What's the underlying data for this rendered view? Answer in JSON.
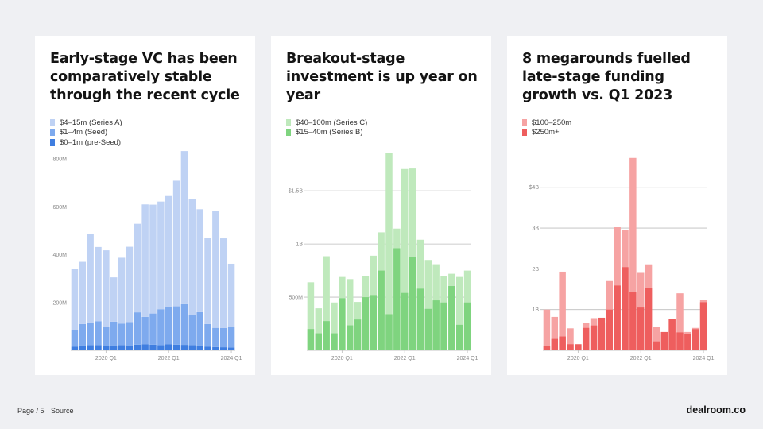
{
  "footer": {
    "page_label": "Page / 5",
    "source_label": "Source"
  },
  "brand": "dealroom.co",
  "colors": {
    "blue_a": "#bfd2f4",
    "blue_seed": "#7eaaee",
    "blue_pre": "#3f7ee0",
    "blue_grid": "#dde3ec",
    "green_c": "#bfe9bc",
    "green_b": "#7fd47f",
    "red_small": "#f6a3a3",
    "red_mega": "#ee5e5e",
    "grid": "#bdbdbd"
  },
  "chart_data": [
    {
      "type": "bar",
      "stacked": true,
      "title": "Early-stage VC has been comparatively stable through the recent cycle",
      "ylim": [
        0,
        840
      ],
      "y_ticks": [
        {
          "value": 200,
          "label": "200M"
        },
        {
          "value": 400,
          "label": "400M"
        },
        {
          "value": 600,
          "label": "600M"
        },
        {
          "value": 800,
          "label": "800M"
        }
      ],
      "x_tick_labels": [
        {
          "index": 4,
          "label": "2020 Q1"
        },
        {
          "index": 12,
          "label": "2022 Q1"
        },
        {
          "index": 20,
          "label": "2024 Q1"
        }
      ],
      "gridlines": false,
      "categories": [
        "2019 Q1",
        "2019 Q2",
        "2019 Q3",
        "2019 Q4",
        "2020 Q1",
        "2020 Q2",
        "2020 Q3",
        "2020 Q4",
        "2021 Q1",
        "2021 Q2",
        "2021 Q3",
        "2021 Q4",
        "2022 Q1",
        "2022 Q2",
        "2022 Q3",
        "2022 Q4",
        "2023 Q1",
        "2023 Q2",
        "2023 Q3",
        "2023 Q4",
        "2024 Q1"
      ],
      "series": [
        {
          "name": "$0–1m (pre-Seed)",
          "color_key": "blue_pre",
          "values": [
            15,
            20,
            22,
            22,
            18,
            20,
            22,
            18,
            24,
            25,
            24,
            22,
            25,
            24,
            23,
            22,
            20,
            15,
            14,
            13,
            12
          ]
        },
        {
          "name": "$1–4m (Seed)",
          "color_key": "blue_seed",
          "values": [
            70,
            90,
            95,
            100,
            80,
            100,
            90,
            100,
            135,
            115,
            130,
            150,
            155,
            160,
            170,
            125,
            140,
            95,
            80,
            80,
            85
          ]
        },
        {
          "name": "$4–15m (Series A)",
          "color_key": "blue_a",
          "values": [
            255,
            260,
            370,
            310,
            320,
            185,
            275,
            315,
            370,
            470,
            455,
            450,
            465,
            525,
            640,
            485,
            430,
            360,
            490,
            375,
            265
          ]
        }
      ],
      "legend": [
        {
          "label": "$4–15m (Series A)",
          "color_key": "blue_a"
        },
        {
          "label": "$1–4m (Seed)",
          "color_key": "blue_seed"
        },
        {
          "label": "$0–1m (pre-Seed)",
          "color_key": "blue_pre"
        }
      ]
    },
    {
      "type": "bar",
      "overlap": true,
      "title": "Breakout-stage investment is up year on year",
      "ylim": [
        0,
        1890
      ],
      "y_ticks": [
        {
          "value": 500,
          "label": "500M"
        },
        {
          "value": 1000,
          "label": "1B"
        },
        {
          "value": 1500,
          "label": "$1.5B"
        }
      ],
      "x_tick_labels": [
        {
          "index": 4,
          "label": "2020 Q1"
        },
        {
          "index": 12,
          "label": "2022 Q1"
        },
        {
          "index": 20,
          "label": "2024 Q1"
        }
      ],
      "gridlines": true,
      "categories": [
        "2019 Q1",
        "2019 Q2",
        "2019 Q3",
        "2019 Q4",
        "2020 Q1",
        "2020 Q2",
        "2020 Q3",
        "2020 Q4",
        "2021 Q1",
        "2021 Q2",
        "2021 Q3",
        "2021 Q4",
        "2022 Q1",
        "2022 Q2",
        "2022 Q3",
        "2022 Q4",
        "2023 Q1",
        "2023 Q2",
        "2023 Q3",
        "2023 Q4",
        "2024 Q1"
      ],
      "series": [
        {
          "name": "$40–100m (Series C)",
          "color_key": "green_c",
          "values": [
            640,
            395,
            885,
            450,
            690,
            670,
            455,
            700,
            890,
            1110,
            1860,
            1145,
            1705,
            1710,
            1040,
            850,
            810,
            695,
            720,
            690,
            750
          ]
        },
        {
          "name": "$15–40m (Series B)",
          "color_key": "green_b",
          "values": [
            200,
            160,
            275,
            160,
            490,
            235,
            290,
            500,
            520,
            750,
            340,
            960,
            540,
            880,
            580,
            390,
            470,
            450,
            605,
            240,
            450
          ]
        }
      ],
      "legend": [
        {
          "label": "$40–100m (Series C)",
          "color_key": "green_c"
        },
        {
          "label": "$15–40m (Series B)",
          "color_key": "green_b"
        }
      ]
    },
    {
      "type": "bar",
      "overlap": true,
      "title": "8 megarounds fuelled late-stage funding growth vs. Q1 2023",
      "ylim": [
        0,
        4930
      ],
      "y_ticks": [
        {
          "value": 1000,
          "label": "1B"
        },
        {
          "value": 2000,
          "label": "2B"
        },
        {
          "value": 3000,
          "label": "3B"
        },
        {
          "value": 4000,
          "label": "$4B"
        }
      ],
      "x_tick_labels": [
        {
          "index": 4,
          "label": "2020 Q1"
        },
        {
          "index": 12,
          "label": "2022 Q1"
        },
        {
          "index": 20,
          "label": "2024 Q1"
        }
      ],
      "gridlines": true,
      "categories": [
        "2019 Q1",
        "2019 Q2",
        "2019 Q3",
        "2019 Q4",
        "2020 Q1",
        "2020 Q2",
        "2020 Q3",
        "2020 Q4",
        "2021 Q1",
        "2021 Q2",
        "2021 Q3",
        "2021 Q4",
        "2022 Q1",
        "2022 Q2",
        "2022 Q3",
        "2022 Q4",
        "2023 Q1",
        "2023 Q2",
        "2023 Q3",
        "2023 Q4",
        "2024 Q1"
      ],
      "series": [
        {
          "name": "$100–250m",
          "color_key": "red_small",
          "values": [
            1000,
            820,
            1930,
            540,
            150,
            680,
            790,
            680,
            1700,
            3020,
            2960,
            4720,
            1900,
            2110,
            580,
            380,
            760,
            1400,
            450,
            550,
            1230
          ]
        },
        {
          "name": "$250m+",
          "color_key": "red_mega",
          "values": [
            110,
            280,
            340,
            150,
            150,
            550,
            610,
            800,
            1000,
            1590,
            2040,
            1440,
            1050,
            1530,
            220,
            450,
            760,
            440,
            400,
            520,
            1180
          ]
        }
      ],
      "legend": [
        {
          "label": "$100–250m",
          "color_key": "red_small"
        },
        {
          "label": "$250m+",
          "color_key": "red_mega"
        }
      ]
    }
  ]
}
